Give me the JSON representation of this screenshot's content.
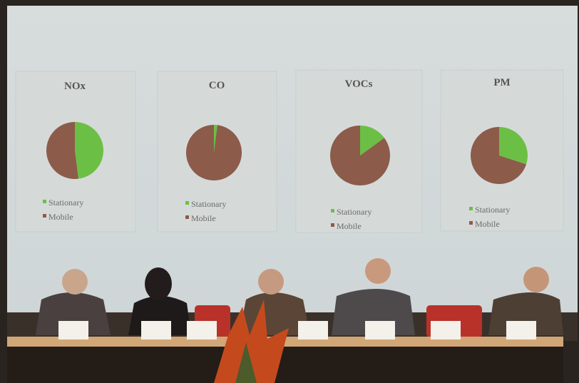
{
  "screen": {
    "charts": [
      {
        "title": "NOx",
        "series": [
          {
            "name": "Stationary",
            "color": "#6cbf45",
            "value": 48
          },
          {
            "name": "Mobile",
            "color": "#8c5b4a",
            "value": 52
          }
        ]
      },
      {
        "title": "CO",
        "series": [
          {
            "name": "Stationary",
            "color": "#6cbf45",
            "value": 2
          },
          {
            "name": "Mobile",
            "color": "#8c5b4a",
            "value": 98
          }
        ]
      },
      {
        "title": "VOCs",
        "series": [
          {
            "name": "Stationary",
            "color": "#6cbf45",
            "value": 15
          },
          {
            "name": "Mobile",
            "color": "#8c5b4a",
            "value": 85
          }
        ]
      },
      {
        "title": "PM",
        "series": [
          {
            "name": "Stationary",
            "color": "#6cbf45",
            "value": 30
          },
          {
            "name": "Mobile",
            "color": "#8c5b4a",
            "value": 70
          }
        ]
      }
    ]
  }
}
